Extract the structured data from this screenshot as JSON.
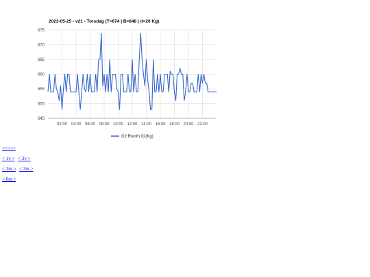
{
  "chart_data": {
    "type": "line",
    "title": "2023-05-25 - v21 - Torsdag (T=674 | B=648 | d=26 Kg)",
    "xlabel": "",
    "ylabel": "",
    "x_ticks": [
      "02:00",
      "04:00",
      "06:00",
      "08:00",
      "10:00",
      "12:00",
      "14:00",
      "16:00",
      "18:00",
      "20:00",
      "22:00"
    ],
    "y_ticks": [
      645,
      650,
      655,
      660,
      665,
      670,
      675
    ],
    "ylim": [
      645,
      675
    ],
    "xlim_hours": [
      0,
      24
    ],
    "grid": true,
    "legend_position": "bottom",
    "series": [
      {
        "name": "G2 Roxtfn 02(Kg)",
        "color": "#3366cc",
        "x_hours": [
          0.0,
          0.2,
          0.4,
          0.6,
          0.8,
          1.0,
          1.2,
          1.4,
          1.6,
          1.8,
          2.0,
          2.2,
          2.4,
          2.6,
          2.8,
          3.0,
          3.2,
          3.4,
          3.6,
          3.8,
          4.0,
          4.2,
          4.4,
          4.6,
          4.8,
          5.0,
          5.2,
          5.4,
          5.6,
          5.8,
          6.0,
          6.2,
          6.4,
          6.6,
          6.8,
          7.0,
          7.2,
          7.4,
          7.6,
          7.8,
          8.0,
          8.2,
          8.4,
          8.6,
          8.8,
          9.0,
          9.2,
          9.4,
          9.6,
          9.8,
          10.0,
          10.2,
          10.4,
          10.6,
          10.8,
          11.0,
          11.2,
          11.4,
          11.6,
          11.8,
          12.0,
          12.2,
          12.4,
          12.6,
          12.8,
          13.0,
          13.2,
          13.4,
          13.6,
          13.8,
          14.0,
          14.2,
          14.4,
          14.6,
          14.8,
          15.0,
          15.2,
          15.4,
          15.6,
          15.8,
          16.0,
          16.2,
          16.4,
          16.6,
          16.8,
          17.0,
          17.2,
          17.4,
          17.6,
          17.8,
          18.0,
          18.2,
          18.4,
          18.6,
          18.8,
          19.0,
          19.2,
          19.4,
          19.6,
          19.8,
          20.0,
          20.2,
          20.4,
          20.6,
          20.8,
          21.0,
          21.2,
          21.4,
          21.6,
          21.8,
          22.0,
          22.2,
          22.4,
          22.6,
          22.8,
          23.0,
          23.2,
          23.4,
          23.6,
          23.8,
          24.0
        ],
        "values": [
          654,
          660,
          654,
          654,
          654,
          660,
          655,
          654,
          651,
          656,
          648,
          655,
          660,
          654,
          660,
          660,
          654,
          654,
          654,
          654,
          654,
          660,
          654,
          648,
          654,
          660,
          655,
          654,
          660,
          654,
          660,
          654,
          654,
          654,
          660,
          654,
          665,
          665,
          674,
          656,
          660,
          654,
          660,
          654,
          665,
          654,
          660,
          660,
          660,
          655,
          654,
          648,
          660,
          660,
          654,
          654,
          654,
          660,
          654,
          654,
          665,
          654,
          660,
          654,
          654,
          665,
          674,
          665,
          660,
          656,
          665,
          658,
          654,
          648,
          648,
          665,
          654,
          654,
          660,
          654,
          660,
          654,
          654,
          660,
          660,
          660,
          654,
          661,
          660,
          660,
          654,
          651,
          660,
          660,
          662,
          660,
          660,
          651,
          654,
          660,
          654,
          654,
          657,
          657,
          654,
          654,
          654,
          660,
          654,
          660,
          657,
          660,
          657,
          657,
          654,
          654,
          654,
          654,
          654,
          654,
          654
        ]
      }
    ]
  },
  "nav": {
    "row1": [
      "<<<<<"
    ],
    "row2": [
      "< 1v >",
      "< 2v >"
    ],
    "row3": [
      "< 1m >",
      "< 3m >"
    ],
    "row4": [
      "< 6m >"
    ]
  }
}
